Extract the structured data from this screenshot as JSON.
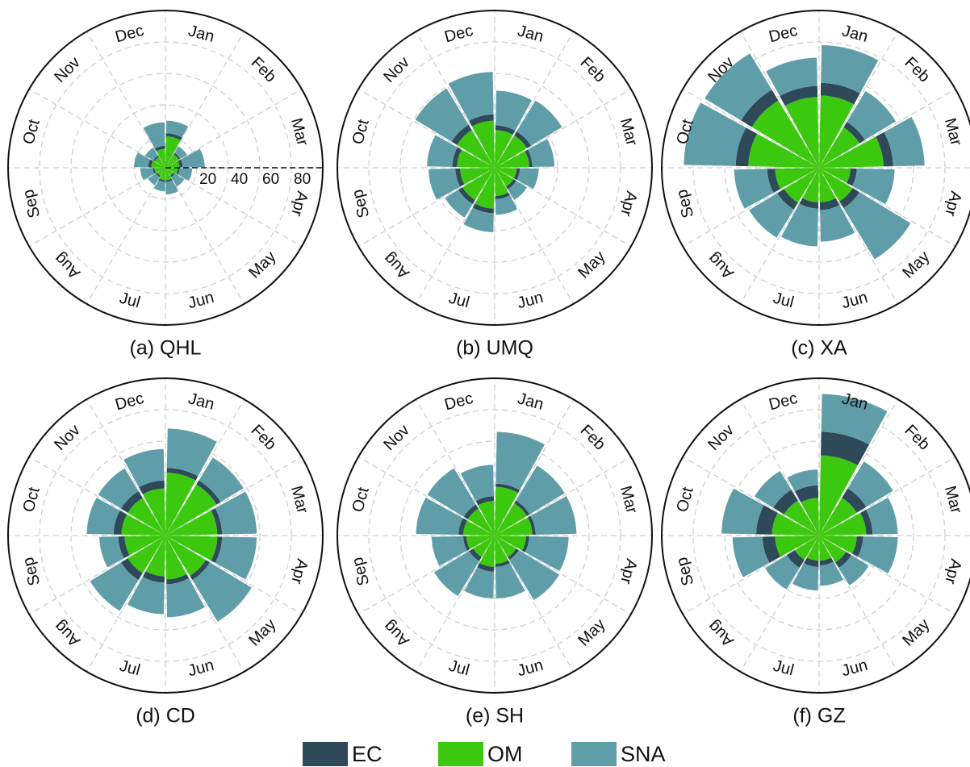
{
  "chart_data": [
    {
      "type": "polar_bar",
      "title": "(a) QHL",
      "rtick_labels": true,
      "stack_order": [
        1,
        0,
        2
      ],
      "categories": [
        "Jan",
        "Feb",
        "Mar",
        "Apr",
        "May",
        "Jun",
        "Jul",
        "Aug",
        "Sep",
        "Oct",
        "Nov",
        "Dec"
      ],
      "rlim": [
        0,
        100
      ],
      "rticks": [
        20,
        40,
        60,
        80
      ],
      "series": [
        {
          "name": "EC",
          "color": "#2e4957",
          "values": [
            2,
            1,
            2,
            1,
            1,
            1,
            1,
            1,
            1,
            2,
            1,
            2
          ]
        },
        {
          "name": "OM",
          "color": "#3cc80e",
          "values": [
            20,
            10,
            9,
            8,
            6,
            8,
            8,
            6,
            7,
            9,
            8,
            12
          ]
        },
        {
          "name": "SNA",
          "color": "#5f9ea8",
          "values": [
            8,
            5,
            14,
            8,
            7,
            8,
            6,
            6,
            8,
            9,
            6,
            15
          ]
        }
      ]
    },
    {
      "type": "polar_bar",
      "title": "(b) UMQ",
      "rtick_labels": false,
      "stack_order": [
        1,
        0,
        2
      ],
      "categories": [
        "Jan",
        "Feb",
        "Mar",
        "Apr",
        "May",
        "Jun",
        "Jul",
        "Aug",
        "Sep",
        "Oct",
        "Nov",
        "Dec"
      ],
      "rlim": [
        0,
        100
      ],
      "rticks": [
        20,
        40,
        60,
        80
      ],
      "series": [
        {
          "name": "EC",
          "color": "#2e4957",
          "values": [
            3,
            3,
            2,
            2,
            2,
            2,
            3,
            3,
            3,
            3,
            4,
            4
          ]
        },
        {
          "name": "OM",
          "color": "#3cc80e",
          "values": [
            24,
            24,
            22,
            14,
            14,
            18,
            26,
            24,
            22,
            24,
            28,
            30
          ]
        },
        {
          "name": "SNA",
          "color": "#5f9ea8",
          "values": [
            22,
            23,
            14,
            12,
            8,
            10,
            12,
            10,
            17,
            16,
            27,
            27
          ]
        }
      ]
    },
    {
      "type": "polar_bar",
      "title": "(c) XA",
      "rtick_labels": false,
      "stack_order": [
        1,
        0,
        2
      ],
      "categories": [
        "Jan",
        "Feb",
        "Mar",
        "Apr",
        "May",
        "Jun",
        "Jul",
        "Aug",
        "Sep",
        "Oct",
        "Nov",
        "Dec"
      ],
      "rlim": [
        0,
        100
      ],
      "rticks": [
        20,
        40,
        60,
        80
      ],
      "series": [
        {
          "name": "EC",
          "color": "#2e4957",
          "values": [
            8,
            4,
            6,
            4,
            5,
            5,
            4,
            5,
            5,
            8,
            8,
            7
          ]
        },
        {
          "name": "OM",
          "color": "#3cc80e",
          "values": [
            46,
            30,
            41,
            20,
            25,
            22,
            22,
            26,
            28,
            45,
            50,
            45
          ]
        },
        {
          "name": "SNA",
          "color": "#5f9ea8",
          "values": [
            24,
            23,
            20,
            24,
            38,
            20,
            24,
            21,
            21,
            33,
            27,
            18
          ]
        }
      ]
    },
    {
      "type": "polar_bar",
      "title": "(d) CD",
      "rtick_labels": false,
      "stack_order": [
        1,
        0,
        2
      ],
      "categories": [
        "Jan",
        "Feb",
        "Mar",
        "Apr",
        "May",
        "Jun",
        "Jul",
        "Aug",
        "Sep",
        "Oct",
        "Nov",
        "Dec"
      ],
      "rlim": [
        0,
        100
      ],
      "rticks": [
        20,
        40,
        60,
        80
      ],
      "series": [
        {
          "name": "EC",
          "color": "#2e4957",
          "values": [
            3,
            3,
            3,
            3,
            3,
            3,
            4,
            5,
            4,
            5,
            5,
            5
          ]
        },
        {
          "name": "OM",
          "color": "#3cc80e",
          "values": [
            40,
            38,
            33,
            33,
            30,
            28,
            26,
            28,
            26,
            28,
            28,
            30
          ]
        },
        {
          "name": "SNA",
          "color": "#5f9ea8",
          "values": [
            25,
            17,
            22,
            22,
            31,
            21,
            20,
            23,
            12,
            17,
            17,
            20
          ]
        }
      ]
    },
    {
      "type": "polar_bar",
      "title": "(e) SH",
      "rtick_labels": false,
      "stack_order": [
        1,
        0,
        2
      ],
      "categories": [
        "Jan",
        "Feb",
        "Mar",
        "Apr",
        "May",
        "Jun",
        "Jul",
        "Aug",
        "Sep",
        "Oct",
        "Nov",
        "Dec"
      ],
      "rlim": [
        0,
        100
      ],
      "rticks": [
        20,
        40,
        60,
        80
      ],
      "series": [
        {
          "name": "EC",
          "color": "#2e4957",
          "values": [
            2,
            2,
            2,
            2,
            2,
            2,
            3,
            3,
            2,
            3,
            3,
            3
          ]
        },
        {
          "name": "OM",
          "color": "#3cc80e",
          "values": [
            31,
            24,
            24,
            20,
            16,
            18,
            20,
            16,
            18,
            20,
            20,
            22
          ]
        },
        {
          "name": "SNA",
          "color": "#5f9ea8",
          "values": [
            33,
            26,
            26,
            25,
            30,
            20,
            17,
            26,
            20,
            27,
            27,
            20
          ]
        }
      ]
    },
    {
      "type": "polar_bar",
      "title": "(f) GZ",
      "rtick_labels": false,
      "stack_order": [
        1,
        0,
        2
      ],
      "categories": [
        "Jan",
        "Feb",
        "Mar",
        "Apr",
        "May",
        "Jun",
        "Jul",
        "Aug",
        "Sep",
        "Oct",
        "Nov",
        "Dec"
      ],
      "rlim": [
        0,
        100
      ],
      "rticks": [
        20,
        40,
        60,
        80
      ],
      "series": [
        {
          "name": "EC",
          "color": "#2e4957",
          "values": [
            15,
            7,
            4,
            4,
            4,
            3,
            4,
            6,
            8,
            10,
            8,
            8
          ]
        },
        {
          "name": "OM",
          "color": "#3cc80e",
          "values": [
            51,
            28,
            30,
            24,
            20,
            16,
            16,
            18,
            28,
            30,
            26,
            24
          ]
        },
        {
          "name": "SNA",
          "color": "#5f9ea8",
          "values": [
            24,
            20,
            16,
            22,
            13,
            13,
            15,
            16,
            19,
            22,
            14,
            10
          ]
        }
      ]
    }
  ]
}
